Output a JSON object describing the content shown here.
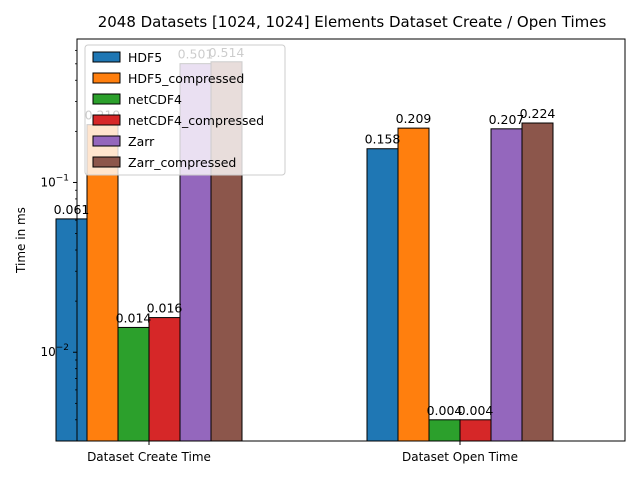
{
  "chart_data": {
    "type": "bar",
    "title": "2048 Datasets [1024, 1024] Elements Dataset Create / Open Times",
    "xlabel": "",
    "ylabel": "Time in ms",
    "yscale": "log",
    "ylim": [
      0.003,
      0.7
    ],
    "y_ticks": [
      {
        "value": 0.01,
        "base": "10",
        "exp": "−2"
      },
      {
        "value": 0.1,
        "base": "10",
        "exp": "−1"
      }
    ],
    "categories": [
      "Dataset Create Time",
      "Dataset Open Time"
    ],
    "series": [
      {
        "name": "HDF5",
        "values": [
          0.061,
          0.158
        ],
        "labels": [
          "0.061",
          "0.158"
        ],
        "color": "#1f77b4"
      },
      {
        "name": "HDF5_compressed",
        "values": [
          0.219,
          0.209
        ],
        "labels": [
          "0.219",
          "0.209"
        ],
        "color": "#ff7f0e"
      },
      {
        "name": "netCDF4",
        "values": [
          0.014,
          0.004
        ],
        "labels": [
          "0.014",
          "0.004"
        ],
        "color": "#2ca02c"
      },
      {
        "name": "netCDF4_compressed",
        "values": [
          0.016,
          0.004
        ],
        "labels": [
          "0.016",
          "0.004"
        ],
        "color": "#d62728"
      },
      {
        "name": "Zarr",
        "values": [
          0.501,
          0.207
        ],
        "labels": [
          "0.501",
          "0.207"
        ],
        "color": "#9467bd"
      },
      {
        "name": "Zarr_compressed",
        "values": [
          0.514,
          0.224
        ],
        "labels": [
          "0.514",
          "0.224"
        ],
        "color": "#8c564b"
      }
    ],
    "legend": "top-left",
    "grid": false
  }
}
